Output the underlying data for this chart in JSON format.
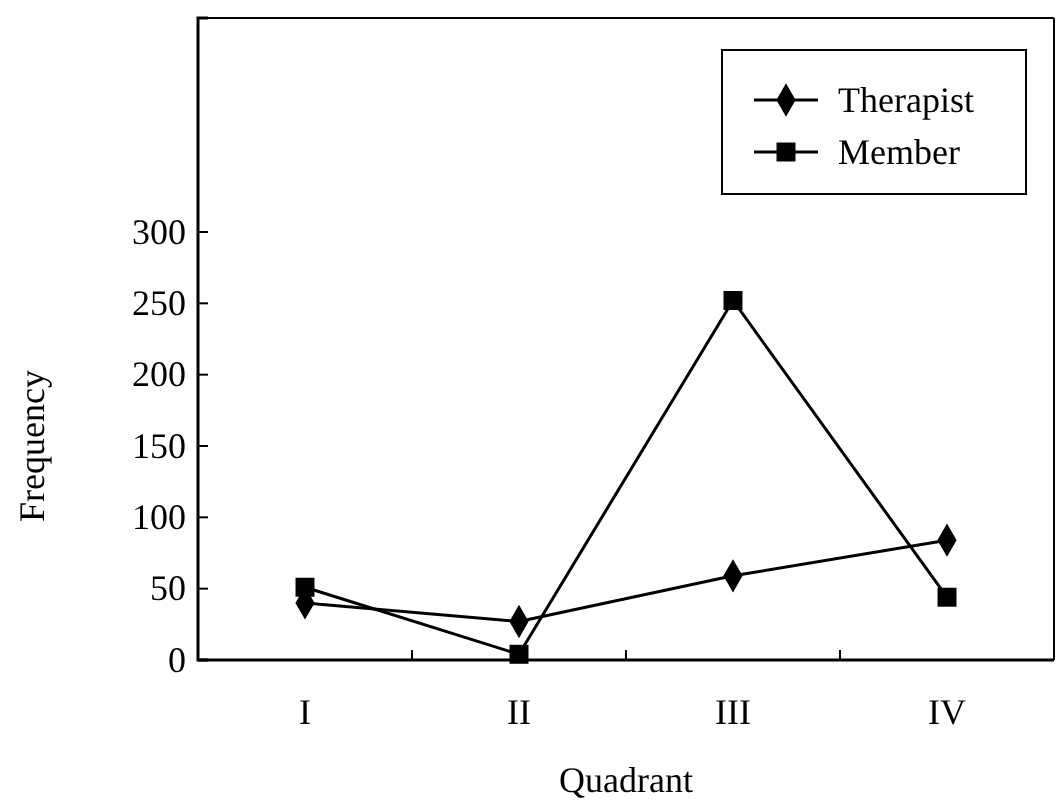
{
  "chart_data": {
    "type": "line",
    "xlabel": "Quadrant",
    "ylabel": "Frequency",
    "categories": [
      "I",
      "II",
      "III",
      "IV"
    ],
    "series": [
      {
        "name": "Therapist",
        "color": "#000000",
        "marker": "diamond",
        "values": [
          40,
          27,
          59,
          84
        ]
      },
      {
        "name": "Member",
        "color": "#000000",
        "marker": "square",
        "values": [
          51,
          4,
          252,
          44
        ]
      }
    ],
    "ylim": [
      0,
      450
    ],
    "yticks": [
      0,
      50,
      100,
      150,
      200,
      250,
      300
    ],
    "legend": "top right",
    "grid": false,
    "line_style": "solid"
  }
}
